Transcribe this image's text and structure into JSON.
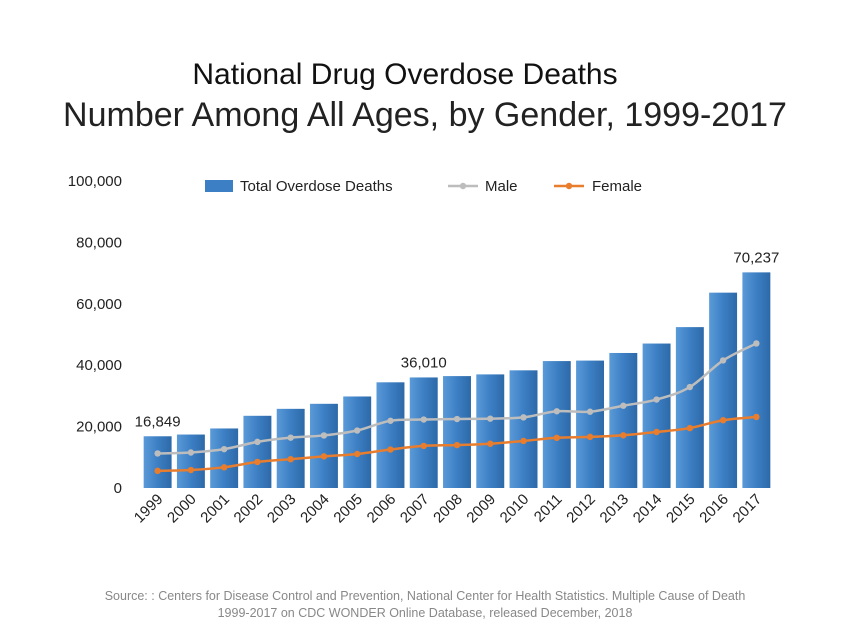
{
  "header": {
    "title": "National Drug Overdose Deaths",
    "subtitle": "Number Among All Ages, by Gender, 1999-2017"
  },
  "footer": {
    "source_line1": "Source: : Centers for Disease Control and Prevention, National Center for Health Statistics. Multiple Cause of Death",
    "source_line2": "1999-2017 on CDC WONDER Online Database, released December, 2018"
  },
  "colors": {
    "bar": "#3d7fc4",
    "male": "#bdbdbd",
    "female": "#e87d2e"
  },
  "chart_data": {
    "type": "bar",
    "title": "National Drug Overdose Deaths",
    "subtitle": "Number Among All Ages, by Gender, 1999-2017",
    "categories": [
      "1999",
      "2000",
      "2001",
      "2002",
      "2003",
      "2004",
      "2005",
      "2006",
      "2007",
      "2008",
      "2009",
      "2010",
      "2011",
      "2012",
      "2013",
      "2014",
      "2015",
      "2016",
      "2017"
    ],
    "ylim": [
      0,
      100000
    ],
    "yticks": [
      "0",
      "20,000",
      "40,000",
      "60,000",
      "80,000",
      "100,000"
    ],
    "legend_position": "top",
    "grid": false,
    "series": [
      {
        "name": "Total Overdose Deaths",
        "kind": "bar",
        "values": [
          16849,
          17415,
          19394,
          23518,
          25785,
          27424,
          29813,
          34425,
          36010,
          36450,
          37004,
          38329,
          41340,
          41502,
          43982,
          47055,
          52404,
          63632,
          70237
        ]
      },
      {
        "name": "Male",
        "kind": "line",
        "values": [
          11258,
          11563,
          12658,
          15028,
          16399,
          17120,
          18724,
          21893,
          22298,
          22468,
          22593,
          23006,
          24989,
          24852,
          26804,
          28813,
          32885,
          41558,
          47087
        ]
      },
      {
        "name": "Female",
        "kind": "line",
        "values": [
          5591,
          5852,
          6736,
          8490,
          9386,
          10304,
          11089,
          12532,
          13712,
          13982,
          14411,
          15323,
          16351,
          16650,
          17178,
          18242,
          19519,
          22074,
          23150
        ]
      }
    ],
    "data_labels": [
      {
        "category": "1999",
        "text": "16,849"
      },
      {
        "category": "2007",
        "text": "36,010"
      },
      {
        "category": "2017",
        "text": "70,237"
      }
    ]
  }
}
